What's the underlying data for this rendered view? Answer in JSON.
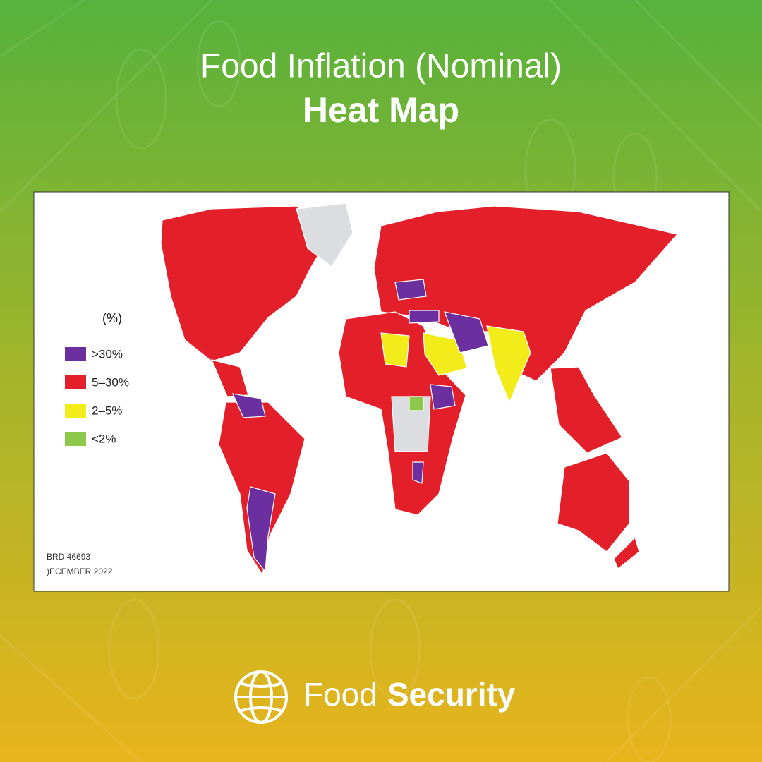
{
  "header": {
    "title": "Food Inflation (Nominal)",
    "subtitle": "Heat Map"
  },
  "map": {
    "legend": {
      "title": "(%)",
      "items": [
        {
          "label": ">30%",
          "color": "#6b2fa0"
        },
        {
          "label": "5–30%",
          "color": "#e3202a"
        },
        {
          "label": "2–5%",
          "color": "#f2ec1a"
        },
        {
          "label": "<2%",
          "color": "#8cc84b"
        }
      ]
    },
    "source_id": "BRD 46693",
    "date": ")ECEMBER 2022"
  },
  "footer": {
    "brand_light": "Food",
    "brand_bold": "Security"
  }
}
